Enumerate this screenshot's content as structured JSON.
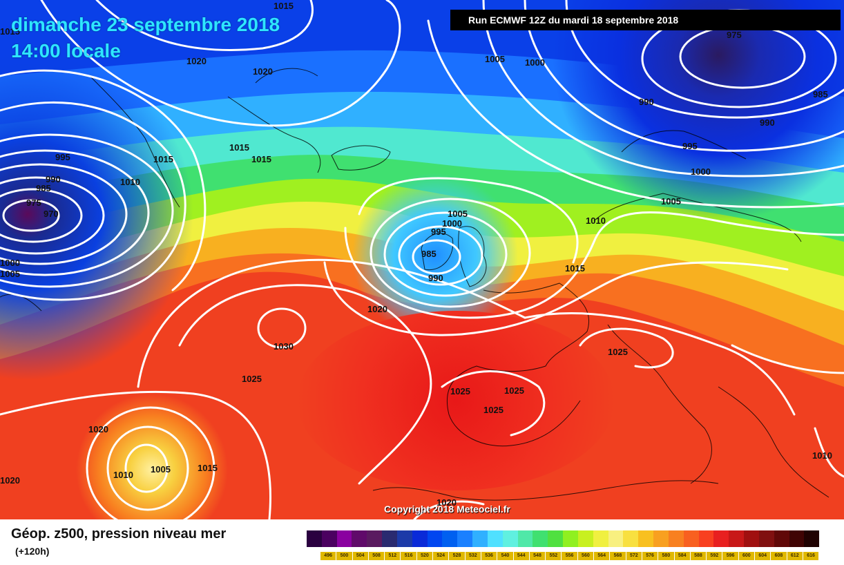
{
  "header": {
    "date": "dimanche 23 septembre 2018",
    "time": "14:00 locale",
    "run": "Run ECMWF 12Z du mardi 18 septembre 2018"
  },
  "copyright": "Copyright 2018 Meteociel.fr",
  "legend": {
    "title": "Géop. z500, pression niveau mer",
    "subtitle": "(+120h)",
    "scale_labels": [
      "496",
      "500",
      "504",
      "508",
      "512",
      "516",
      "520",
      "524",
      "528",
      "532",
      "536",
      "540",
      "544",
      "548",
      "552",
      "556",
      "560",
      "564",
      "568",
      "572",
      "576",
      "580",
      "584",
      "588",
      "592",
      "596",
      "600",
      "604",
      "608",
      "612",
      "616"
    ],
    "scale_colors": [
      "#2a0040",
      "#4b0060",
      "#8a00a0",
      "#600a6a",
      "#5a1a60",
      "#2a2a70",
      "#1c3aa8",
      "#0a2ad8",
      "#0046f0",
      "#0060f0",
      "#1a80ff",
      "#30b0ff",
      "#50e0ff",
      "#60f0e0",
      "#50e8a8",
      "#40e070",
      "#50e040",
      "#90f020",
      "#c8f020",
      "#f0f040",
      "#f8f080",
      "#f8e040",
      "#f8c020",
      "#f8a020",
      "#f88020",
      "#f86020",
      "#f84020",
      "#e82020",
      "#c81818",
      "#a01010",
      "#801010",
      "#600808",
      "#400404",
      "#200202"
    ]
  },
  "isobars": [
    {
      "id": "l1015a",
      "text": "1015"
    },
    {
      "id": "l1015b",
      "text": "1015"
    },
    {
      "id": "l1020a",
      "text": "1020"
    },
    {
      "id": "l1020b",
      "text": "1020"
    },
    {
      "id": "l1005a",
      "text": "1005"
    },
    {
      "id": "l1000a",
      "text": "1000"
    },
    {
      "id": "l975a",
      "text": "975"
    },
    {
      "id": "l985a",
      "text": "985"
    },
    {
      "id": "l990a",
      "text": "990"
    },
    {
      "id": "l990b",
      "text": "990"
    },
    {
      "id": "l995a",
      "text": "995"
    },
    {
      "id": "l1000b",
      "text": "1000"
    },
    {
      "id": "l1005b",
      "text": "1005"
    },
    {
      "id": "l995b",
      "text": "995"
    },
    {
      "id": "l990c",
      "text": "990"
    },
    {
      "id": "l985b",
      "text": "985"
    },
    {
      "id": "l975b",
      "text": "975"
    },
    {
      "id": "l970a",
      "text": "970"
    },
    {
      "id": "l1010a",
      "text": "1010"
    },
    {
      "id": "l1015c",
      "text": "1015"
    },
    {
      "id": "l1015d",
      "text": "1015"
    },
    {
      "id": "l1015e",
      "text": "1015"
    },
    {
      "id": "l1000c",
      "text": "1000"
    },
    {
      "id": "l1005c",
      "text": "1005"
    },
    {
      "id": "l1005d",
      "text": "1005"
    },
    {
      "id": "l1000d",
      "text": "1000"
    },
    {
      "id": "l995c",
      "text": "995"
    },
    {
      "id": "l985c",
      "text": "985"
    },
    {
      "id": "l990d",
      "text": "990"
    },
    {
      "id": "l1010b",
      "text": "1010"
    },
    {
      "id": "l1015f",
      "text": "1015"
    },
    {
      "id": "l1020c",
      "text": "1020"
    },
    {
      "id": "l1030a",
      "text": "1030"
    },
    {
      "id": "l1025a",
      "text": "1025"
    },
    {
      "id": "l1025b",
      "text": "1025"
    },
    {
      "id": "l1025c",
      "text": "1025"
    },
    {
      "id": "l1025d",
      "text": "1025"
    },
    {
      "id": "l1025e",
      "text": "1025"
    },
    {
      "id": "l1020d",
      "text": "1020"
    },
    {
      "id": "l1010c",
      "text": "1010"
    },
    {
      "id": "l1005e",
      "text": "1005"
    },
    {
      "id": "l1015g",
      "text": "1015"
    },
    {
      "id": "l1020e",
      "text": "1020"
    },
    {
      "id": "l1020f",
      "text": "1020"
    },
    {
      "id": "l1010d",
      "text": "1010"
    }
  ]
}
